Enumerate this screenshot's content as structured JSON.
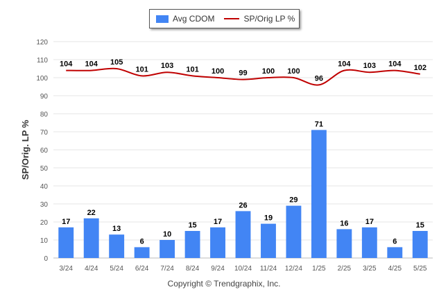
{
  "chart_data": {
    "type": "bar",
    "categories": [
      "3/24",
      "4/24",
      "5/24",
      "6/24",
      "7/24",
      "8/24",
      "9/24",
      "10/24",
      "11/24",
      "12/24",
      "1/25",
      "2/25",
      "3/25",
      "4/25",
      "5/25"
    ],
    "series": [
      {
        "name": "Avg CDOM",
        "type": "bar",
        "values": [
          17,
          22,
          13,
          6,
          10,
          15,
          17,
          26,
          19,
          29,
          71,
          16,
          17,
          6,
          15
        ],
        "color": "#4285f4"
      },
      {
        "name": "SP/Orig LP %",
        "type": "line",
        "values": [
          104,
          104,
          105,
          101,
          103,
          101,
          100,
          99,
          100,
          100,
          96,
          104,
          103,
          104,
          102
        ],
        "color": "#c00000"
      }
    ],
    "ylabel": "SP/Orig. LP %",
    "ylim": [
      0,
      120
    ],
    "yticks": [
      0,
      10,
      20,
      30,
      40,
      50,
      60,
      70,
      80,
      90,
      100,
      110,
      120
    ],
    "grid": true,
    "legend": "top-center"
  },
  "legend": {
    "bar_label": "Avg CDOM",
    "line_label": "SP/Orig LP %"
  },
  "footer": {
    "copyright": "Copyright © Trendgraphix, Inc."
  }
}
